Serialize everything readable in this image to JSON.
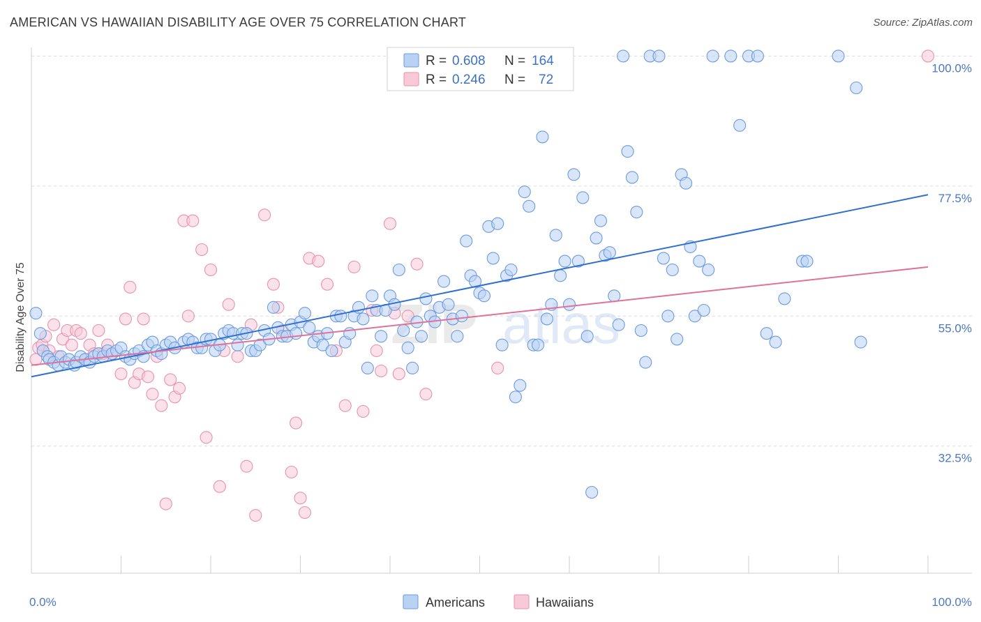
{
  "chart_data": {
    "type": "scatter",
    "title": "AMERICAN VS HAWAIIAN DISABILITY AGE OVER 75 CORRELATION CHART",
    "source": "Source: ZipAtlas.com",
    "xlabel": "",
    "ylabel": "Disability Age Over 75",
    "xlim": [
      0,
      100
    ],
    "ylim": [
      10.5,
      101.5
    ],
    "x_tick_labels": [
      "0.0%",
      "100.0%"
    ],
    "y_ticks": [
      {
        "value": 100.0,
        "label": "100.0%"
      },
      {
        "value": 77.5,
        "label": "77.5%"
      },
      {
        "value": 55.0,
        "label": "55.0%"
      },
      {
        "value": 32.5,
        "label": "32.5%"
      }
    ],
    "watermark": {
      "zip": "ZIP",
      "atlas": "atlas"
    },
    "legend": {
      "rows": [
        {
          "r_label": "R =",
          "r_value": "0.608",
          "n_label": "N =",
          "n_value": "164"
        },
        {
          "r_label": "R =",
          "r_value": "0.246",
          "n_label": "N =",
          "n_value": "72"
        }
      ]
    },
    "series": [
      {
        "name": "Americans",
        "color": "#6a9be0",
        "fill": "#b9d2f4",
        "trend": {
          "x0": 0,
          "y0": 44.5,
          "x1": 100,
          "y1": 76.0
        },
        "points": [
          [
            0.5,
            55.5
          ],
          [
            1,
            52
          ],
          [
            1.3,
            49
          ],
          [
            1.8,
            48
          ],
          [
            2,
            47.5
          ],
          [
            2.5,
            47
          ],
          [
            3,
            46.5
          ],
          [
            3.3,
            48
          ],
          [
            3.8,
            47
          ],
          [
            4.2,
            47.5
          ],
          [
            4.8,
            46.5
          ],
          [
            5,
            47
          ],
          [
            5.5,
            48
          ],
          [
            6,
            47.5
          ],
          [
            6.5,
            47
          ],
          [
            7,
            48
          ],
          [
            7.5,
            48.5
          ],
          [
            8,
            48
          ],
          [
            8.5,
            49
          ],
          [
            9,
            48.5
          ],
          [
            9.5,
            49
          ],
          [
            10,
            49.5
          ],
          [
            10.5,
            48
          ],
          [
            11,
            47.5
          ],
          [
            11.5,
            48.5
          ],
          [
            12,
            49
          ],
          [
            12.5,
            48
          ],
          [
            13,
            50
          ],
          [
            13.5,
            50.5
          ],
          [
            14,
            49
          ],
          [
            14.5,
            48.5
          ],
          [
            15,
            50
          ],
          [
            15.5,
            50.5
          ],
          [
            16,
            49.5
          ],
          [
            17,
            50.5
          ],
          [
            17.5,
            51
          ],
          [
            18,
            50.5
          ],
          [
            18.5,
            49.5
          ],
          [
            19,
            49.5
          ],
          [
            19.5,
            51
          ],
          [
            20,
            51
          ],
          [
            20.5,
            49
          ],
          [
            21,
            50
          ],
          [
            21.5,
            52
          ],
          [
            22,
            52.5
          ],
          [
            22.5,
            52
          ],
          [
            23,
            50
          ],
          [
            23.5,
            52
          ],
          [
            24,
            52
          ],
          [
            24.5,
            49
          ],
          [
            25,
            49
          ],
          [
            25.5,
            50
          ],
          [
            26,
            52.5
          ],
          [
            26.5,
            51
          ],
          [
            27,
            56.5
          ],
          [
            27.5,
            53
          ],
          [
            28,
            51.5
          ],
          [
            28.5,
            51.5
          ],
          [
            29,
            53.5
          ],
          [
            29.5,
            52
          ],
          [
            30,
            54
          ],
          [
            30.5,
            55.5
          ],
          [
            31,
            53
          ],
          [
            31.5,
            50.5
          ],
          [
            32,
            51.5
          ],
          [
            32.5,
            50
          ],
          [
            33,
            52
          ],
          [
            33.5,
            49
          ],
          [
            34,
            55
          ],
          [
            34.5,
            55
          ],
          [
            35,
            50.5
          ],
          [
            35.5,
            52
          ],
          [
            36,
            55
          ],
          [
            36.5,
            56.5
          ],
          [
            37,
            54.5
          ],
          [
            37.5,
            46
          ],
          [
            38,
            58.5
          ],
          [
            38.5,
            56
          ],
          [
            39,
            51.5
          ],
          [
            39.5,
            56
          ],
          [
            40,
            58.5
          ],
          [
            40.5,
            57
          ],
          [
            41,
            63
          ],
          [
            41.5,
            52.5
          ],
          [
            42,
            49.5
          ],
          [
            42.5,
            46
          ],
          [
            43,
            54
          ],
          [
            43.5,
            51.5
          ],
          [
            44,
            58
          ],
          [
            44.5,
            55
          ],
          [
            45,
            54
          ],
          [
            45.5,
            56.5
          ],
          [
            46,
            61
          ],
          [
            46.5,
            57
          ],
          [
            47,
            54.5
          ],
          [
            47.5,
            51.5
          ],
          [
            48,
            55
          ],
          [
            48.5,
            68
          ],
          [
            49,
            62
          ],
          [
            49.5,
            61
          ],
          [
            50,
            59
          ],
          [
            50.5,
            58.5
          ],
          [
            51,
            70.5
          ],
          [
            51.5,
            65
          ],
          [
            52,
            71
          ],
          [
            52.5,
            50
          ],
          [
            53,
            62
          ],
          [
            53.5,
            63
          ],
          [
            54,
            41
          ],
          [
            54.5,
            43
          ],
          [
            55,
            76.5
          ],
          [
            55.5,
            74
          ],
          [
            56,
            50
          ],
          [
            56.5,
            50
          ],
          [
            57,
            86
          ],
          [
            57.5,
            54.5
          ],
          [
            58,
            57
          ],
          [
            58.5,
            69
          ],
          [
            59,
            62
          ],
          [
            59.5,
            64.5
          ],
          [
            60,
            57
          ],
          [
            60.5,
            79.5
          ],
          [
            61,
            64.5
          ],
          [
            61.5,
            75.5
          ],
          [
            62,
            51.5
          ],
          [
            62.5,
            24.5
          ],
          [
            63,
            68.5
          ],
          [
            63.5,
            71.5
          ],
          [
            64,
            65.5
          ],
          [
            64.5,
            66
          ],
          [
            65,
            58.5
          ],
          [
            65.5,
            53.5
          ],
          [
            66,
            100
          ],
          [
            66.5,
            83.5
          ],
          [
            67,
            79
          ],
          [
            67.5,
            73
          ],
          [
            68,
            52.5
          ],
          [
            68.5,
            47
          ],
          [
            69,
            100
          ],
          [
            70,
            100
          ],
          [
            70.5,
            65
          ],
          [
            71,
            55
          ],
          [
            71.5,
            63
          ],
          [
            72,
            51
          ],
          [
            72.5,
            79.5
          ],
          [
            73,
            78
          ],
          [
            73.5,
            67
          ],
          [
            74,
            55
          ],
          [
            74.5,
            64.5
          ],
          [
            75,
            56
          ],
          [
            76,
            100
          ],
          [
            78,
            100
          ],
          [
            79,
            88
          ],
          [
            80,
            100
          ],
          [
            81,
            100
          ],
          [
            82,
            52
          ],
          [
            83,
            50.5
          ],
          [
            84,
            58
          ],
          [
            86,
            64.5
          ],
          [
            90,
            100
          ],
          [
            92,
            94.5
          ],
          [
            92.5,
            50.5
          ],
          [
            86.5,
            64.5
          ],
          [
            75.5,
            63
          ]
        ]
      },
      {
        "name": "Hawaiians",
        "color": "#e892ad",
        "fill": "#f8c9d7",
        "trend": {
          "x0": 0,
          "y0": 46.5,
          "x1": 100,
          "y1": 63.5
        },
        "points": [
          [
            0.5,
            47.5
          ],
          [
            0.8,
            49.5
          ],
          [
            1.2,
            50
          ],
          [
            1.6,
            51.5
          ],
          [
            2,
            49
          ],
          [
            2.5,
            53.5
          ],
          [
            3,
            48
          ],
          [
            3.5,
            51
          ],
          [
            4,
            52.5
          ],
          [
            4.5,
            50
          ],
          [
            5,
            52.5
          ],
          [
            5.5,
            52
          ],
          [
            6,
            47.5
          ],
          [
            6.5,
            50
          ],
          [
            7,
            48.5
          ],
          [
            7.5,
            52.5
          ],
          [
            8,
            48.5
          ],
          [
            8.5,
            50
          ],
          [
            9,
            48.5
          ],
          [
            10,
            45
          ],
          [
            10.5,
            54.5
          ],
          [
            11,
            60
          ],
          [
            11.5,
            43.5
          ],
          [
            12,
            45
          ],
          [
            12.5,
            54.5
          ],
          [
            13,
            44.5
          ],
          [
            13.5,
            41.5
          ],
          [
            14,
            48
          ],
          [
            14.5,
            39.5
          ],
          [
            15,
            22.5
          ],
          [
            15.5,
            44
          ],
          [
            16,
            41
          ],
          [
            16.5,
            42.5
          ],
          [
            17,
            71.5
          ],
          [
            17.5,
            55
          ],
          [
            18,
            71.5
          ],
          [
            19,
            66.5
          ],
          [
            19.5,
            34
          ],
          [
            20,
            63
          ],
          [
            21,
            25.5
          ],
          [
            21.5,
            49
          ],
          [
            22,
            57
          ],
          [
            23,
            48
          ],
          [
            24,
            29
          ],
          [
            24.5,
            53.5
          ],
          [
            25,
            20.5
          ],
          [
            26,
            72.5
          ],
          [
            27,
            60.5
          ],
          [
            27.5,
            56.5
          ],
          [
            28,
            52.5
          ],
          [
            29,
            28
          ],
          [
            29.5,
            36.5
          ],
          [
            30,
            23.5
          ],
          [
            30.5,
            21
          ],
          [
            31,
            65
          ],
          [
            32,
            64.5
          ],
          [
            33,
            60.5
          ],
          [
            34,
            49
          ],
          [
            35,
            39.5
          ],
          [
            36,
            63.5
          ],
          [
            37,
            38.5
          ],
          [
            38,
            56
          ],
          [
            38.5,
            49
          ],
          [
            39,
            45.5
          ],
          [
            40,
            71
          ],
          [
            40.5,
            55.5
          ],
          [
            41,
            45
          ],
          [
            42,
            55
          ],
          [
            43,
            64
          ],
          [
            44,
            41.5
          ],
          [
            52,
            46
          ],
          [
            100,
            100
          ]
        ]
      }
    ],
    "bottom_legend": [
      "Americans",
      "Hawaiians"
    ]
  }
}
